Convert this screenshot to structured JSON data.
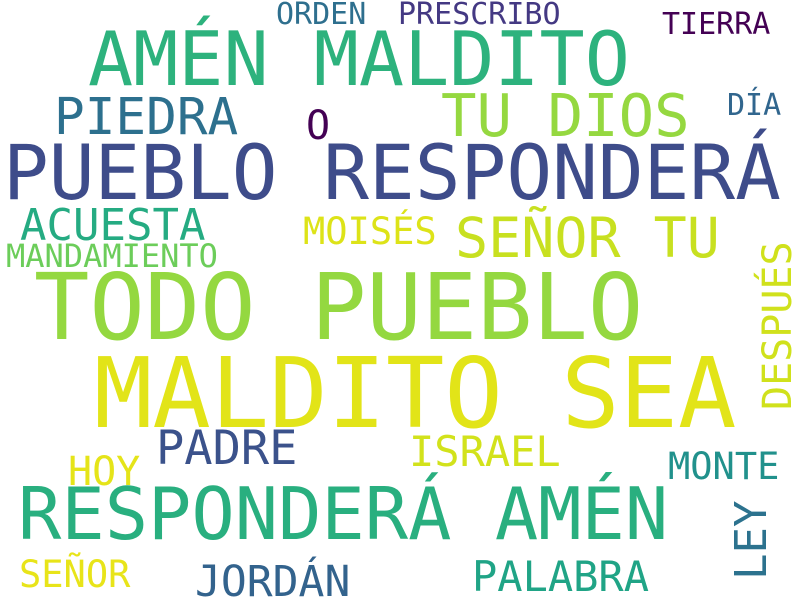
{
  "words": [
    {
      "text": "AMÉN MALDITO",
      "color": "#2db27d"
    },
    {
      "text": "PUEBLO RESPONDERÁ",
      "color": "#3e4c8a"
    },
    {
      "text": "TODO PUEBLO",
      "color": "#94d840"
    },
    {
      "text": "MALDITO SEA",
      "color": "#e2e418"
    },
    {
      "text": "RESPONDERÁ AMÉN",
      "color": "#29af7f"
    },
    {
      "text": "TU DIOS",
      "color": "#95d840"
    },
    {
      "text": "PIEDRA",
      "color": "#2d708e"
    },
    {
      "text": "SEÑOR TU",
      "color": "#c8e020"
    },
    {
      "text": "ACUESTA",
      "color": "#25ab82"
    },
    {
      "text": "MANDAMIENTO",
      "color": "#6ccd5a"
    },
    {
      "text": "MOISÉS",
      "color": "#dde318"
    },
    {
      "text": "PADRE",
      "color": "#3b528b"
    },
    {
      "text": "ISRAEL",
      "color": "#d2e21b"
    },
    {
      "text": "HOY",
      "color": "#e5e419"
    },
    {
      "text": "MONTE",
      "color": "#21918c"
    },
    {
      "text": "DESPUÉS",
      "color": "#d0e11c"
    },
    {
      "text": "LEY",
      "color": "#2c728e"
    },
    {
      "text": "PALABRA",
      "color": "#20a486"
    },
    {
      "text": "JORDÁN",
      "color": "#33638d"
    },
    {
      "text": "SEÑOR",
      "color": "#e8e419"
    },
    {
      "text": "ORDEN",
      "color": "#2e6f8e"
    },
    {
      "text": "PRESCRIBO",
      "color": "#443983"
    },
    {
      "text": "TIERRA",
      "color": "#440154"
    },
    {
      "text": "DÍA",
      "color": "#31668e"
    },
    {
      "text": "O",
      "color": "#440154"
    }
  ]
}
